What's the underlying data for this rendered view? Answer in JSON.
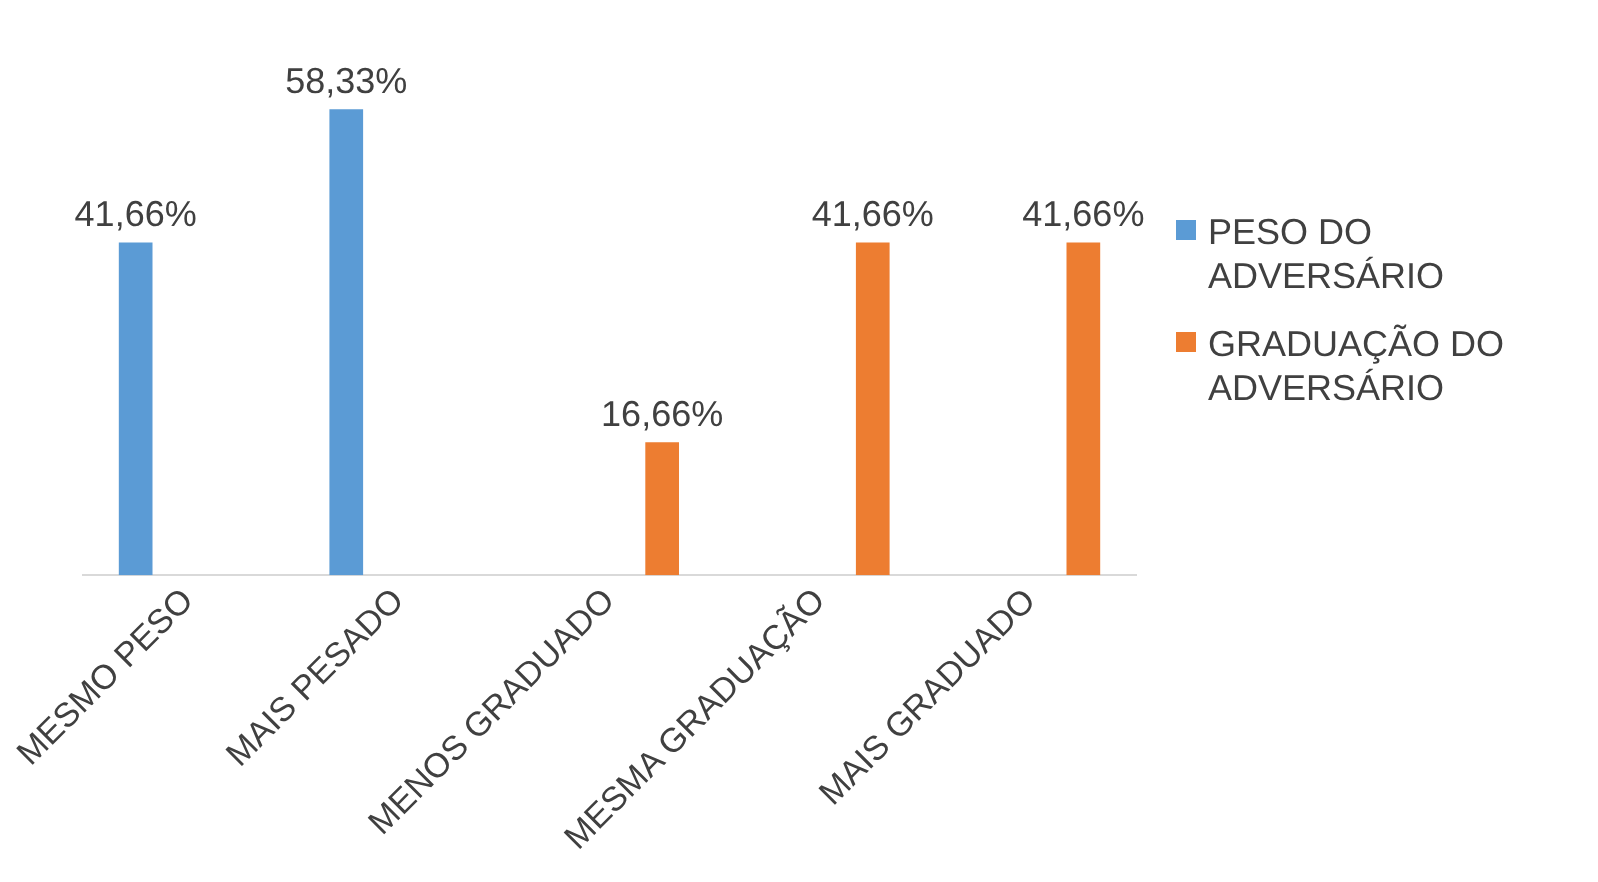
{
  "chart_data": {
    "type": "bar",
    "categories": [
      "MESMO PESO",
      "MAIS PESADO",
      "MENOS GRADUADO",
      "MESMA GRADUAÇÃO",
      "MAIS GRADUADO"
    ],
    "series": [
      {
        "name": "PESO DO ADVERSÁRIO",
        "color": "#5b9bd5",
        "values": [
          41.66,
          58.33,
          null,
          null,
          null
        ],
        "value_labels": [
          "41,66%",
          "58,33%",
          null,
          null,
          null
        ]
      },
      {
        "name": "GRADUAÇÃO DO ADVERSÁRIO",
        "color": "#ed7d31",
        "values": [
          null,
          null,
          16.66,
          41.66,
          41.66
        ],
        "value_labels": [
          null,
          null,
          "16,66%",
          "41,66%",
          "41,66%"
        ]
      }
    ],
    "tick_labels": "x",
    "grid": false,
    "legend": "right"
  }
}
